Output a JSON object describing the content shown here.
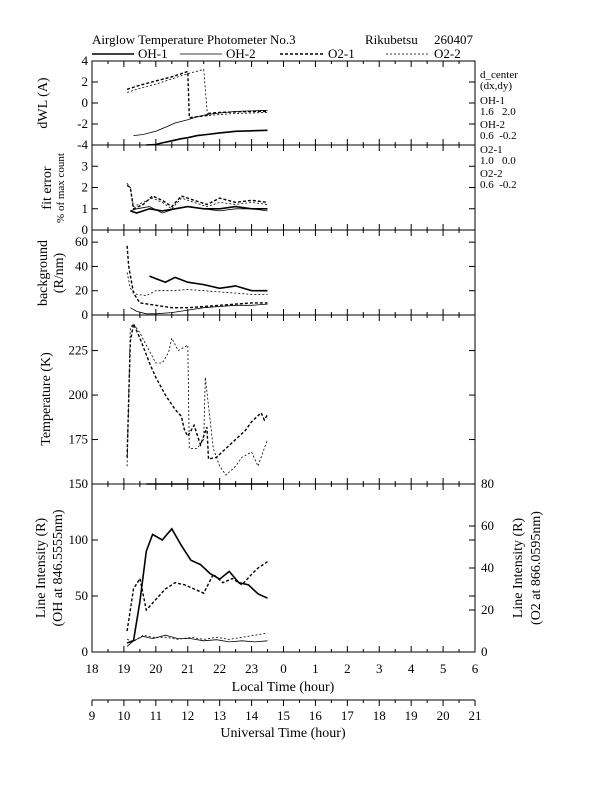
{
  "header": {
    "title": "Airglow Temperature Photometer No.3",
    "station": "Rikubetsu",
    "date": "260407"
  },
  "legend": [
    {
      "label": "OH-1",
      "dash": "",
      "width": 1.6
    },
    {
      "label": "OH-2",
      "dash": "",
      "width": 0.8
    },
    {
      "label": "O2-1",
      "dash": "3,2",
      "width": 1.4
    },
    {
      "label": "O2-2",
      "dash": "2,2",
      "width": 0.8
    }
  ],
  "side_notes": {
    "title": "d_center",
    "subtitle": "(dx,dy)",
    "items": [
      {
        "name": "OH-1",
        "value": "1.6   2.0"
      },
      {
        "name": "OH-2",
        "value": "0.6  -0.2"
      },
      {
        "name": "O2-1",
        "value": "1.0   0.0"
      },
      {
        "name": "O2-2",
        "value": "0.6  -0.2"
      }
    ]
  },
  "axes": {
    "local_time_label": "Local Time (hour)",
    "universal_time_label": "Universal Time (hour)",
    "local_ticks": [
      "18",
      "19",
      "20",
      "21",
      "22",
      "23",
      "0",
      "1",
      "2",
      "3",
      "4",
      "5",
      "6"
    ],
    "ut_ticks": [
      "9",
      "10",
      "11",
      "12",
      "13",
      "14",
      "15",
      "16",
      "17",
      "18",
      "19",
      "20",
      "21"
    ]
  },
  "chart_data": [
    {
      "type": "line",
      "panel": "dwl",
      "ylabel": "dWL (A)",
      "ylim": [
        -4,
        4
      ],
      "yticks": [
        -4,
        -2,
        0,
        2,
        4
      ],
      "xlim": [
        18,
        30
      ],
      "series": [
        {
          "name": "OH-1",
          "x": [
            19.7,
            20.0,
            20.2,
            20.5,
            20.8,
            21.0,
            21.3,
            21.6,
            22.0,
            22.5,
            23.0,
            23.5
          ],
          "y": [
            -4.0,
            -3.95,
            -3.8,
            -3.6,
            -3.4,
            -3.3,
            -3.1,
            -3.0,
            -2.85,
            -2.7,
            -2.65,
            -2.6
          ]
        },
        {
          "name": "OH-2",
          "x": [
            19.3,
            19.6,
            20.0,
            20.3,
            20.6,
            21.0,
            21.3,
            21.6,
            22.0,
            22.5,
            23.0,
            23.5
          ],
          "y": [
            -3.1,
            -3.0,
            -2.7,
            -2.3,
            -1.9,
            -1.6,
            -1.3,
            -1.1,
            -0.95,
            -0.8,
            -0.75,
            -0.7
          ]
        },
        {
          "name": "O2-1",
          "x": [
            19.1,
            19.5,
            20.0,
            20.5,
            21.0,
            21.05,
            21.3,
            21.6,
            21.62,
            22.0,
            22.5,
            23.0,
            23.5
          ],
          "y": [
            1.3,
            1.7,
            2.1,
            2.5,
            3.0,
            -1.4,
            -1.3,
            -1.2,
            -1.0,
            -0.9,
            -0.85,
            -0.8,
            -0.8
          ]
        },
        {
          "name": "O2-2",
          "x": [
            19.1,
            19.5,
            20.0,
            20.5,
            21.0,
            21.5,
            21.62,
            22.0,
            22.5,
            23.0,
            23.5
          ],
          "y": [
            1.0,
            1.4,
            1.8,
            2.3,
            2.8,
            3.2,
            -1.2,
            -1.1,
            -1.0,
            -0.95,
            -0.9
          ]
        }
      ]
    },
    {
      "type": "line",
      "panel": "fiterror",
      "ylabel": "fit error",
      "ylabel2": "% of max count",
      "ylim": [
        0,
        4
      ],
      "yticks": [
        0,
        1,
        2,
        3
      ],
      "xlim": [
        18,
        30
      ],
      "series": [
        {
          "name": "OH-1",
          "x": [
            19.2,
            19.4,
            19.8,
            20.2,
            20.6,
            21.0,
            21.5,
            22.0,
            22.5,
            23.0,
            23.5
          ],
          "y": [
            0.9,
            0.8,
            1.0,
            0.9,
            1.0,
            1.1,
            1.0,
            1.0,
            1.1,
            1.0,
            1.0
          ]
        },
        {
          "name": "OH-2",
          "x": [
            19.2,
            19.4,
            19.8,
            20.2,
            20.6,
            21.0,
            21.5,
            22.0,
            22.5,
            23.0,
            23.5
          ],
          "y": [
            0.9,
            1.0,
            1.1,
            0.8,
            1.0,
            1.1,
            1.0,
            0.9,
            1.0,
            1.0,
            0.9
          ]
        },
        {
          "name": "O2-1",
          "x": [
            19.1,
            19.2,
            19.3,
            19.6,
            19.9,
            20.2,
            20.5,
            20.8,
            21.2,
            21.6,
            22.0,
            22.5,
            23.0,
            23.5
          ],
          "y": [
            2.1,
            2.0,
            1.0,
            1.2,
            1.6,
            1.4,
            1.1,
            1.6,
            1.4,
            1.2,
            1.5,
            1.3,
            1.4,
            1.3
          ]
        },
        {
          "name": "O2-2",
          "x": [
            19.1,
            19.2,
            19.3,
            19.6,
            19.9,
            20.2,
            20.5,
            20.8,
            21.2,
            21.6,
            22.0,
            22.5,
            23.0,
            23.5
          ],
          "y": [
            2.2,
            2.0,
            1.1,
            1.3,
            1.5,
            1.3,
            1.0,
            1.5,
            1.3,
            1.1,
            1.3,
            1.2,
            1.3,
            1.2
          ]
        }
      ]
    },
    {
      "type": "line",
      "panel": "background",
      "ylabel": "background",
      "ylabel2": "(R/nm)",
      "ylim": [
        0,
        70
      ],
      "yticks": [
        0,
        20,
        40,
        60
      ],
      "xlim": [
        18,
        30
      ],
      "series": [
        {
          "name": "OH-1",
          "x": [
            19.8,
            20.0,
            20.3,
            20.6,
            21.0,
            21.5,
            22.0,
            22.5,
            23.0,
            23.5
          ],
          "y": [
            32,
            30,
            27,
            31,
            27,
            25,
            22,
            24,
            20,
            20
          ]
        },
        {
          "name": "OH-2",
          "x": [
            19.2,
            19.4,
            19.7,
            20.0,
            20.5,
            21.0,
            21.5,
            22.0,
            22.5,
            23.0,
            23.5
          ],
          "y": [
            6,
            3,
            1,
            1,
            2,
            4,
            6,
            7,
            8,
            8,
            9
          ]
        },
        {
          "name": "O2-1",
          "x": [
            19.1,
            19.15,
            19.3,
            19.5,
            20.0,
            20.5,
            21.0,
            21.5,
            22.0,
            22.5,
            23.0,
            23.5
          ],
          "y": [
            57,
            40,
            18,
            10,
            8,
            6,
            6,
            7,
            8,
            9,
            10,
            10
          ]
        },
        {
          "name": "O2-2",
          "x": [
            19.1,
            19.2,
            19.4,
            19.7,
            20.0,
            20.5,
            21.0,
            21.5,
            22.0,
            22.5,
            23.0,
            23.5
          ],
          "y": [
            35,
            22,
            17,
            16,
            20,
            20,
            21,
            20,
            19,
            18,
            17,
            17
          ]
        }
      ]
    },
    {
      "type": "line",
      "panel": "temperature",
      "ylabel": "Temperature (K)",
      "ylim": [
        150,
        245
      ],
      "yticks": [
        175,
        200,
        225
      ],
      "xlim": [
        18,
        30
      ],
      "series": [
        {
          "name": "O2-1",
          "x": [
            19.1,
            19.2,
            19.3,
            19.5,
            19.8,
            20.0,
            20.3,
            20.6,
            20.8,
            20.9,
            21.0,
            21.2,
            21.4,
            21.6,
            21.65,
            21.9,
            22.2,
            22.5,
            22.8,
            23.0,
            23.3,
            23.4,
            23.5
          ],
          "y": [
            165,
            230,
            240,
            232,
            218,
            210,
            200,
            192,
            188,
            180,
            177,
            183,
            172,
            182,
            164,
            165,
            170,
            175,
            180,
            185,
            190,
            186,
            189
          ]
        },
        {
          "name": "O2-2",
          "x": [
            19.1,
            19.2,
            19.3,
            19.5,
            19.7,
            20.0,
            20.2,
            20.4,
            20.5,
            20.7,
            21.0,
            21.05,
            21.3,
            21.5,
            21.55,
            21.8,
            22.0,
            22.2,
            22.5,
            22.7,
            23.0,
            23.2,
            23.4,
            23.5
          ],
          "y": [
            160,
            238,
            240,
            235,
            228,
            218,
            218,
            224,
            232,
            225,
            228,
            170,
            170,
            175,
            210,
            170,
            160,
            155,
            160,
            165,
            168,
            160,
            170,
            175
          ]
        }
      ]
    },
    {
      "type": "line",
      "panel": "intensity",
      "ylabel": "Line Intensity (R)",
      "ylabel2": "(OH at 846.5555nm)",
      "ylabel_right": "Line Intensity (R)",
      "ylabel_right2": "(O2 at 866.0595nm)",
      "ylim": [
        0,
        150
      ],
      "yticks": [
        0,
        50,
        100,
        150
      ],
      "ylim_right": [
        0,
        80
      ],
      "yticks_right": [
        0,
        20,
        40,
        60,
        80
      ],
      "xlim": [
        18,
        30
      ],
      "reference_line": {
        "x": [
          19.7,
          23.5
        ],
        "y": 150
      },
      "series": [
        {
          "name": "OH-1",
          "axis": "left",
          "x": [
            19.1,
            19.3,
            19.5,
            19.7,
            19.9,
            20.2,
            20.5,
            20.8,
            21.1,
            21.4,
            21.7,
            22.0,
            22.3,
            22.6,
            22.9,
            23.2,
            23.5
          ],
          "y": [
            8,
            10,
            45,
            90,
            105,
            100,
            110,
            95,
            82,
            78,
            70,
            65,
            72,
            62,
            60,
            52,
            48
          ]
        },
        {
          "name": "OH-2",
          "axis": "left",
          "x": [
            19.1,
            19.3,
            19.6,
            19.9,
            20.3,
            20.7,
            21.1,
            21.5,
            21.9,
            22.3,
            22.7,
            23.1,
            23.5
          ],
          "y": [
            5,
            10,
            14,
            12,
            15,
            12,
            12,
            10,
            11,
            9,
            10,
            9,
            10
          ]
        },
        {
          "name": "O2-1",
          "axis": "right",
          "x": [
            19.1,
            19.3,
            19.5,
            19.7,
            20.0,
            20.3,
            20.6,
            20.9,
            21.2,
            21.5,
            21.8,
            22.1,
            22.4,
            22.7,
            23.0,
            23.2,
            23.5
          ],
          "y": [
            10,
            30,
            35,
            20,
            25,
            30,
            33,
            32,
            30,
            28,
            37,
            33,
            35,
            32,
            37,
            40,
            43
          ]
        },
        {
          "name": "O2-2",
          "axis": "right",
          "x": [
            19.1,
            19.3,
            19.6,
            19.9,
            20.3,
            20.7,
            21.1,
            21.5,
            21.9,
            22.3,
            22.7,
            23.1,
            23.5
          ],
          "y": [
            6,
            5,
            8,
            7,
            7,
            6,
            7,
            6,
            7,
            6,
            7,
            8,
            9
          ]
        }
      ]
    }
  ]
}
